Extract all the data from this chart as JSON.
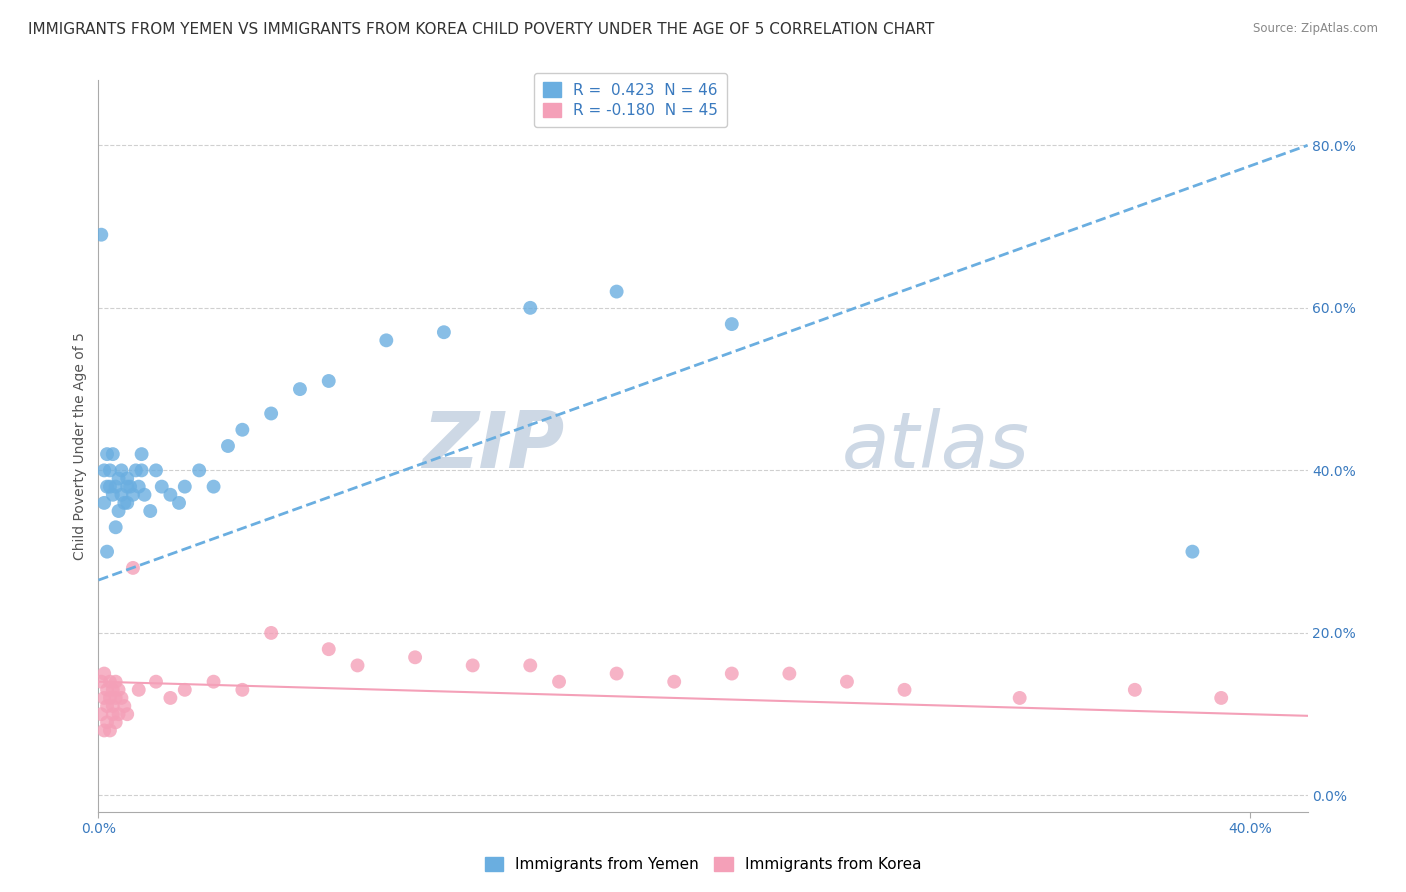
{
  "title": "IMMIGRANTS FROM YEMEN VS IMMIGRANTS FROM KOREA CHILD POVERTY UNDER THE AGE OF 5 CORRELATION CHART",
  "source": "Source: ZipAtlas.com",
  "ylabel": "Child Poverty Under the Age of 5",
  "xlim": [
    0.0,
    0.42
  ],
  "ylim": [
    -0.02,
    0.88
  ],
  "yticks_right": [
    0.0,
    0.2,
    0.4,
    0.6,
    0.8
  ],
  "yemen_R": 0.423,
  "yemen_N": 46,
  "korea_R": -0.18,
  "korea_N": 45,
  "yemen_color": "#6aaee0",
  "korea_color": "#f4a0b8",
  "yemen_scatter_x": [
    0.001,
    0.002,
    0.002,
    0.003,
    0.003,
    0.003,
    0.004,
    0.004,
    0.005,
    0.005,
    0.006,
    0.006,
    0.007,
    0.007,
    0.008,
    0.008,
    0.009,
    0.01,
    0.01,
    0.01,
    0.011,
    0.012,
    0.013,
    0.014,
    0.015,
    0.015,
    0.016,
    0.018,
    0.02,
    0.022,
    0.025,
    0.028,
    0.03,
    0.035,
    0.04,
    0.045,
    0.05,
    0.06,
    0.07,
    0.08,
    0.1,
    0.12,
    0.15,
    0.18,
    0.22,
    0.38
  ],
  "yemen_scatter_y": [
    0.69,
    0.36,
    0.4,
    0.42,
    0.38,
    0.3,
    0.4,
    0.38,
    0.42,
    0.37,
    0.38,
    0.33,
    0.39,
    0.35,
    0.4,
    0.37,
    0.36,
    0.38,
    0.36,
    0.39,
    0.38,
    0.37,
    0.4,
    0.38,
    0.42,
    0.4,
    0.37,
    0.35,
    0.4,
    0.38,
    0.37,
    0.36,
    0.38,
    0.4,
    0.38,
    0.43,
    0.45,
    0.47,
    0.5,
    0.51,
    0.56,
    0.57,
    0.6,
    0.62,
    0.58,
    0.3
  ],
  "korea_scatter_x": [
    0.001,
    0.001,
    0.002,
    0.002,
    0.002,
    0.003,
    0.003,
    0.003,
    0.004,
    0.004,
    0.004,
    0.005,
    0.005,
    0.005,
    0.006,
    0.006,
    0.006,
    0.007,
    0.007,
    0.008,
    0.009,
    0.01,
    0.012,
    0.014,
    0.02,
    0.025,
    0.03,
    0.04,
    0.05,
    0.06,
    0.08,
    0.09,
    0.11,
    0.13,
    0.15,
    0.16,
    0.18,
    0.2,
    0.22,
    0.24,
    0.26,
    0.28,
    0.32,
    0.36,
    0.39
  ],
  "korea_scatter_y": [
    0.14,
    0.1,
    0.12,
    0.15,
    0.08,
    0.13,
    0.11,
    0.09,
    0.12,
    0.14,
    0.08,
    0.13,
    0.1,
    0.11,
    0.12,
    0.09,
    0.14,
    0.1,
    0.13,
    0.12,
    0.11,
    0.1,
    0.28,
    0.13,
    0.14,
    0.12,
    0.13,
    0.14,
    0.13,
    0.2,
    0.18,
    0.16,
    0.17,
    0.16,
    0.16,
    0.14,
    0.15,
    0.14,
    0.15,
    0.15,
    0.14,
    0.13,
    0.12,
    0.13,
    0.12
  ],
  "watermark_zip": "ZIP",
  "watermark_atlas": "atlas",
  "watermark_color": "#cdd8e5",
  "background_color": "#ffffff",
  "grid_color": "#d0d0d0",
  "title_fontsize": 11,
  "axis_label_fontsize": 10,
  "tick_fontsize": 10,
  "legend_fontsize": 11
}
